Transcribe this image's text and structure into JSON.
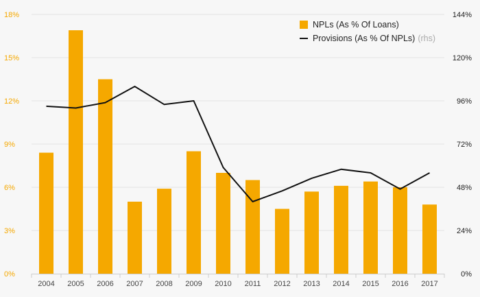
{
  "chart_data": {
    "type": "bar",
    "categories": [
      "2004",
      "2005",
      "2006",
      "2007",
      "2008",
      "2009",
      "2010",
      "2011",
      "2012",
      "2013",
      "2014",
      "2015",
      "2016",
      "2017"
    ],
    "series": [
      {
        "name": "NPLs (As % Of Loans)",
        "type": "bar",
        "axis": "left",
        "color": "#f5a800",
        "values": [
          8.4,
          16.9,
          13.5,
          5.0,
          5.9,
          8.5,
          7.0,
          6.5,
          4.5,
          5.7,
          6.1,
          6.4,
          6.0,
          4.8
        ]
      },
      {
        "name": "Provisions (As % Of NPLs)",
        "type": "line",
        "axis": "right",
        "color": "#111111",
        "values": [
          93,
          92,
          95,
          104,
          94,
          96,
          59,
          40,
          46,
          53,
          58,
          56,
          47,
          56
        ]
      }
    ],
    "legend_note": "(rhs)",
    "y_left": {
      "lim": [
        0,
        18
      ],
      "ticks": [
        "0%",
        "3%",
        "6%",
        "9%",
        "12%",
        "15%",
        "18%"
      ],
      "tick_color": "#f5a800"
    },
    "y_right": {
      "lim": [
        0,
        144
      ],
      "ticks": [
        "0%",
        "24%",
        "48%",
        "72%",
        "96%",
        "120%",
        "144%"
      ]
    },
    "grid": true,
    "legend_position": "top-right"
  }
}
